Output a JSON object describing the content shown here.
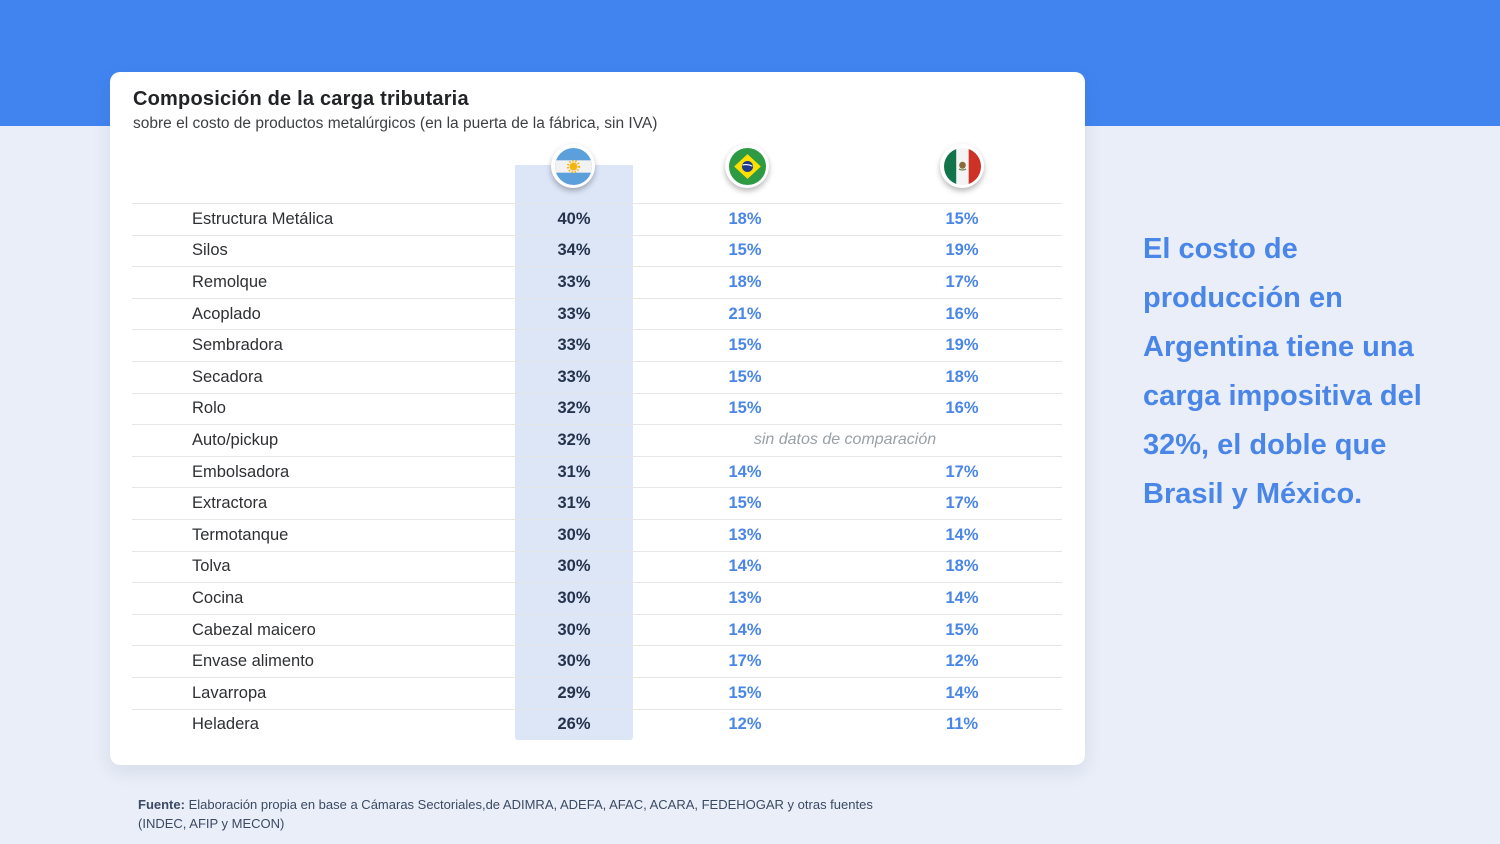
{
  "card": {
    "title": "Composición de la carga tributaria",
    "subtitle": "sobre el costo de productos metalúrgicos (en la puerta de la fábrica, sin IVA)",
    "no_data_label": "sin datos de comparación",
    "flags": [
      {
        "country": "Argentina"
      },
      {
        "country": "Brasil"
      },
      {
        "country": "México"
      }
    ]
  },
  "chart_data": {
    "type": "table",
    "title": "Composición de la carga tributaria",
    "subtitle": "sobre el costo de productos metalúrgicos (en la puerta de la fábrica, sin IVA)",
    "unit": "%",
    "categories": [
      "Estructura Metálica",
      "Silos",
      "Remolque",
      "Acoplado",
      "Sembradora",
      "Secadora",
      "Rolo",
      "Auto/pickup",
      "Embolsadora",
      "Extractora",
      "Termotanque",
      "Tolva",
      "Cocina",
      "Cabezal maicero",
      "Envase alimento",
      "Lavarropa",
      "Heladera"
    ],
    "series": [
      {
        "name": "Argentina",
        "values": [
          40,
          34,
          33,
          33,
          33,
          33,
          32,
          32,
          31,
          31,
          30,
          30,
          30,
          30,
          30,
          29,
          26
        ]
      },
      {
        "name": "Brasil",
        "values": [
          18,
          15,
          18,
          21,
          15,
          15,
          15,
          null,
          14,
          15,
          13,
          14,
          13,
          14,
          17,
          15,
          12
        ]
      },
      {
        "name": "México",
        "values": [
          15,
          19,
          17,
          16,
          19,
          18,
          16,
          null,
          17,
          17,
          14,
          18,
          14,
          15,
          12,
          14,
          11
        ]
      }
    ],
    "no_data_note": {
      "row": "Auto/pickup",
      "label": "sin datos de comparación"
    },
    "highlighted_series": "Argentina",
    "legend_position": "top-flags",
    "grid": "horizontal-row-separators"
  },
  "callout": {
    "text": "El costo de producción en Argentina tiene una carga impositiva del 32%, el doble que Brasil y México."
  },
  "source": {
    "label": "Fuente:",
    "text": "Elaboración propia en base a Cámaras Sectoriales,de ADIMRA, ADEFA, AFAC, ACARA, FEDEHOGAR y otras fuentes (INDEC, AFIP y MECON)"
  },
  "colors": {
    "header_band": "#4184F0",
    "page_background": "#E9EEF8",
    "card_background": "#FFFFFF",
    "argentina_column_highlight": "#DCE6F7",
    "argentina_value_text": "#26334D",
    "comparison_value_text": "#4A86E8",
    "callout_text": "#4A86E8",
    "no_data_text": "#9AA0A6"
  }
}
